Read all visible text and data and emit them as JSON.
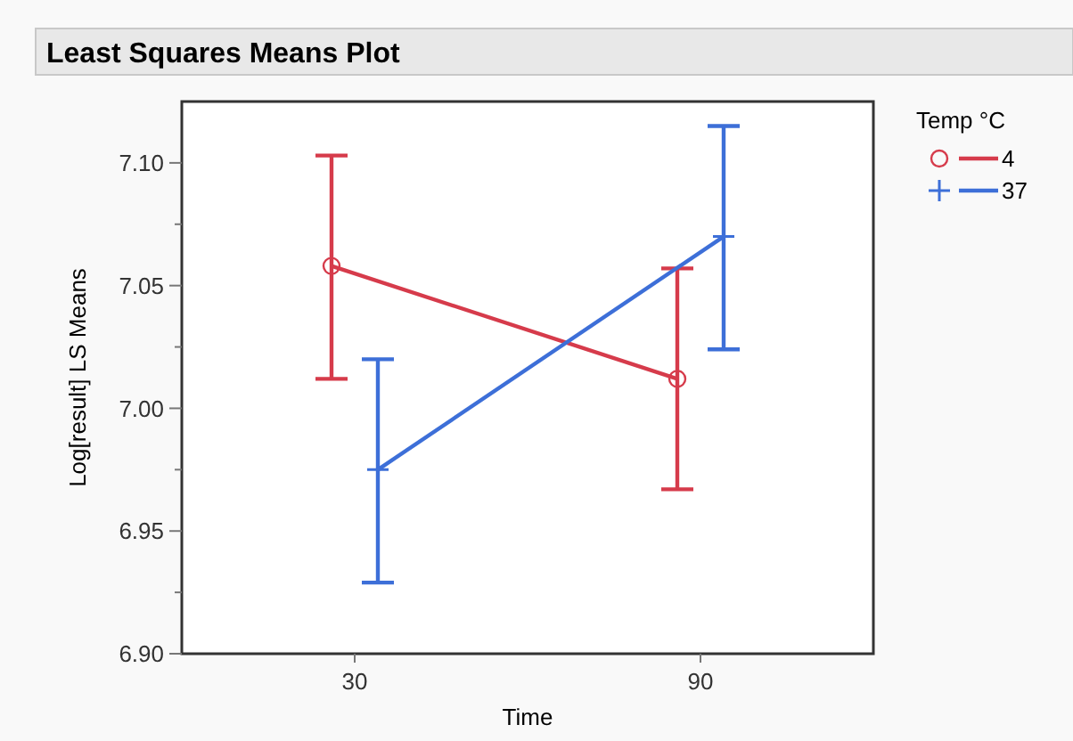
{
  "chart_data": {
    "type": "line",
    "title": "Least Squares Means Plot",
    "xlabel": "Time",
    "ylabel": "Log[result] LS Means",
    "legend_title": "Temp °C",
    "legend": "top right",
    "categories": [
      "30",
      "90"
    ],
    "series": [
      {
        "name": "4",
        "color": "#d63b4b",
        "marker": "circle",
        "values": [
          7.058,
          7.012
        ],
        "errors": [
          [
            7.012,
            7.103
          ],
          [
            6.967,
            7.057
          ]
        ]
      },
      {
        "name": "37",
        "color": "#3d6fd8",
        "marker": "cross",
        "values": [
          6.975,
          7.07
        ],
        "errors": [
          [
            6.929,
            7.02
          ],
          [
            7.024,
            7.115
          ]
        ]
      }
    ],
    "ylim": [
      6.9,
      7.125
    ],
    "yticks": [
      {
        "value": 6.9,
        "label": "6.90"
      },
      {
        "value": 6.95,
        "label": "6.95"
      },
      {
        "value": 7.0,
        "label": "7.00"
      },
      {
        "value": 7.05,
        "label": "7.05"
      },
      {
        "value": 7.1,
        "label": "7.10"
      }
    ],
    "grid": false
  }
}
